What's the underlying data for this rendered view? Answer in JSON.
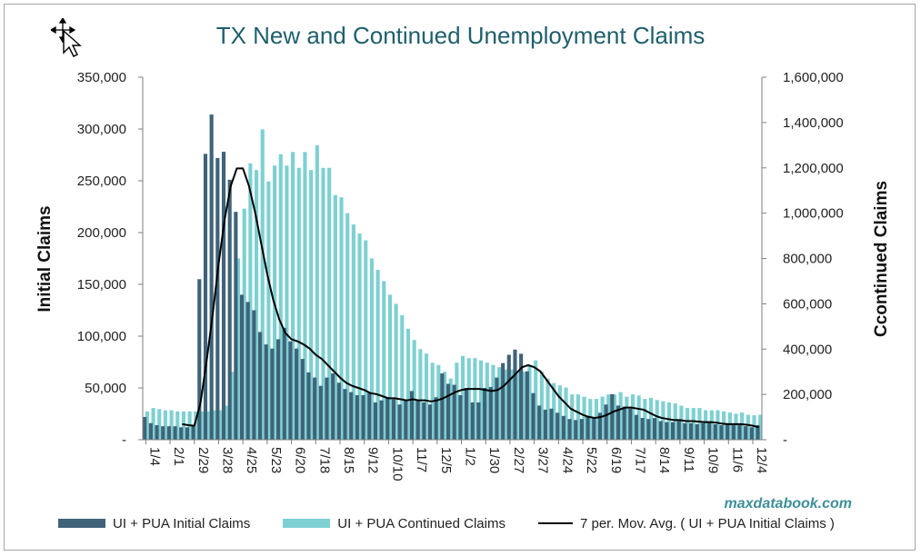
{
  "chart_data": {
    "type": "bar",
    "title": "TX New and Continued Unemployment Claims",
    "ylabel": "Initial Claims",
    "y2label": "Ccontinued Claims",
    "ylim": [
      0,
      350000
    ],
    "y2lim": [
      0,
      1600000
    ],
    "y_ticks": [
      "-",
      "50,000",
      "100,000",
      "150,000",
      "200,000",
      "250,000",
      "300,000",
      "350,000"
    ],
    "y2_ticks": [
      "-",
      "200,000",
      "400,000",
      "600,000",
      "800,000",
      "1,000,000",
      "1,200,000",
      "1,400,000",
      "1,600,000"
    ],
    "x_tick_labels": [
      "1/4",
      "2/1",
      "2/29",
      "3/28",
      "4/25",
      "5/23",
      "6/20",
      "7/18",
      "8/15",
      "9/12",
      "10/10",
      "11/7",
      "12/5",
      "1/2",
      "1/30",
      "2/27",
      "3/27",
      "4/24",
      "5/22",
      "6/19",
      "7/17",
      "8/14",
      "9/11",
      "10/9",
      "11/6",
      "12/4"
    ],
    "series": [
      {
        "name": "UI + PUA Initial Claims",
        "axis": "left",
        "color": "#3f6379",
        "values": [
          22000,
          16000,
          14000,
          13000,
          13000,
          13000,
          12000,
          12000,
          13000,
          155000,
          276000,
          314000,
          272000,
          278000,
          251000,
          220000,
          140000,
          133000,
          125000,
          104000,
          92000,
          88000,
          97000,
          108000,
          95000,
          88000,
          78000,
          65000,
          60000,
          52000,
          60000,
          64000,
          55000,
          49000,
          46000,
          43000,
          43000,
          45000,
          36000,
          38000,
          41000,
          39000,
          34000,
          38000,
          47000,
          38000,
          36000,
          34000,
          41000,
          64000,
          54000,
          53000,
          43000,
          50000,
          36000,
          36000,
          50000,
          51000,
          60000,
          74000,
          82000,
          87000,
          83000,
          66000,
          45000,
          33000,
          29000,
          30000,
          26000,
          23000,
          20000,
          19000,
          20000,
          22000,
          22000,
          26000,
          34000,
          44000,
          33000,
          32000,
          30000,
          24000,
          21000,
          20000,
          21000,
          18000,
          17000,
          17000,
          18000,
          16000,
          16000,
          15000,
          16000,
          17000,
          15000,
          14000,
          15000,
          14000,
          14000,
          13000,
          12000,
          14000
        ]
      },
      {
        "name": "UI + PUA Continued Claims",
        "axis": "right",
        "color": "#7ed0d2",
        "values": [
          125000,
          140000,
          135000,
          130000,
          130000,
          125000,
          125000,
          125000,
          125000,
          125000,
          125000,
          130000,
          130000,
          150000,
          300000,
          800000,
          1020000,
          1220000,
          1190000,
          1370000,
          1140000,
          1210000,
          1260000,
          1210000,
          1270000,
          1200000,
          1270000,
          1190000,
          1300000,
          1200000,
          1200000,
          1080000,
          1070000,
          1000000,
          950000,
          910000,
          880000,
          800000,
          750000,
          700000,
          640000,
          600000,
          550000,
          490000,
          440000,
          400000,
          380000,
          340000,
          330000,
          300000,
          270000,
          340000,
          370000,
          360000,
          360000,
          350000,
          340000,
          330000,
          320000,
          310000,
          310000,
          300000,
          300000,
          330000,
          350000,
          300000,
          270000,
          250000,
          240000,
          230000,
          200000,
          200000,
          190000,
          180000,
          180000,
          190000,
          200000,
          200000,
          210000,
          190000,
          200000,
          195000,
          180000,
          185000,
          175000,
          170000,
          165000,
          160000,
          150000,
          140000,
          140000,
          140000,
          130000,
          130000,
          130000,
          125000,
          120000,
          115000,
          120000,
          110000,
          108000,
          110000
        ]
      },
      {
        "name": "7 per. Mov. Avg. ( UI + PUA Initial Claims )",
        "axis": "left",
        "type": "line",
        "color": "#000000",
        "values": [
          null,
          null,
          null,
          null,
          null,
          null,
          15000,
          14000,
          13500,
          35000,
          75000,
          120000,
          170000,
          213000,
          245000,
          262000,
          262000,
          245000,
          220000,
          190000,
          160000,
          135000,
          116000,
          103000,
          97000,
          95000,
          92000,
          88000,
          82000,
          78000,
          72000,
          66000,
          60000,
          55000,
          52000,
          50000,
          48000,
          45000,
          44000,
          42000,
          40000,
          40000,
          39000,
          38000,
          39000,
          38000,
          38000,
          37000,
          38000,
          40000,
          43000,
          46000,
          48000,
          49000,
          49000,
          49000,
          48000,
          47000,
          48000,
          52000,
          58000,
          64000,
          70000,
          72000,
          70000,
          66000,
          58000,
          50000,
          42000,
          36000,
          30000,
          27000,
          24000,
          22000,
          21000,
          22000,
          24000,
          27000,
          29000,
          31000,
          31000,
          30000,
          29000,
          26000,
          23000,
          21000,
          20000,
          19000,
          19000,
          18000,
          18000,
          17500,
          17000,
          17000,
          16500,
          15500,
          15000,
          15000,
          15000,
          14500,
          13500,
          12000
        ]
      }
    ],
    "legend_position": "bottom",
    "grid": false
  },
  "source_label": "maxdatabook.com",
  "legend": {
    "initial": "UI + PUA Initial Claims",
    "continued": "UI + PUA Continued Claims",
    "movavg": "7 per. Mov. Avg. ( UI + PUA Initial Claims )"
  },
  "colors": {
    "initial": "#3f6379",
    "continued": "#7ed0d2",
    "line": "#000000",
    "title": "#1f5f6b",
    "source": "#3d8f9a"
  },
  "icons": {
    "cursor": "move-cursor-icon"
  }
}
